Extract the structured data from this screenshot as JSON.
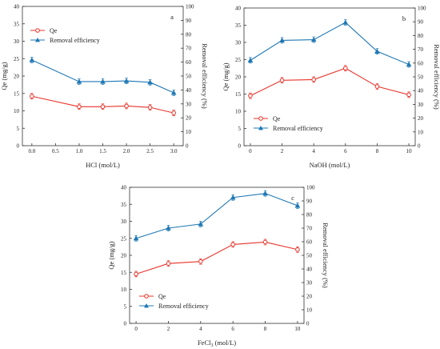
{
  "chart_data": [
    {
      "panel": "a",
      "type": "line",
      "xlabel": "HCl (mol/L)",
      "ylabel": "Qe (mg/g)",
      "y2label": "Removal efficiency (%)",
      "xlim": [
        -0.2,
        3.2
      ],
      "xticks": [
        "0.0",
        "0.5",
        "1.0",
        "1.5",
        "2.0",
        "2.5",
        "3.0"
      ],
      "ylim": [
        0,
        40
      ],
      "yticks": [
        "0",
        "5",
        "10",
        "15",
        "20",
        "25",
        "30",
        "35",
        "40"
      ],
      "y2lim": [
        0,
        100
      ],
      "y2ticks": [
        "0",
        "10",
        "20",
        "30",
        "40",
        "50",
        "60",
        "70",
        "80",
        "90",
        "100"
      ],
      "legend_position": "top-left",
      "grid": false,
      "series": [
        {
          "name": "Qe",
          "axis": "left",
          "marker": "circle",
          "color": "#e8332a",
          "x": [
            0,
            1,
            1.5,
            2,
            2.5,
            3
          ],
          "y": [
            14.2,
            11.2,
            11.2,
            11.4,
            11.0,
            9.4
          ]
        },
        {
          "name": "Removal efficiency",
          "axis": "right",
          "marker": "triangle",
          "color": "#1f78b4",
          "x": [
            0,
            1,
            1.5,
            2,
            2.5,
            3
          ],
          "y": [
            61.5,
            46.0,
            46.0,
            46.5,
            45.5,
            38.0
          ]
        }
      ]
    },
    {
      "panel": "b",
      "type": "line",
      "xlabel": "NaOH (mol/L)",
      "ylabel": "Qe (mg/g)",
      "y2label": "Removal efficiency (%)",
      "xlim": [
        -0.4,
        10.4
      ],
      "xticks": [
        "0",
        "2",
        "4",
        "6",
        "8",
        "10"
      ],
      "ylim": [
        0,
        40
      ],
      "yticks": [
        "0",
        "5",
        "10",
        "15",
        "20",
        "25",
        "30",
        "35",
        "40"
      ],
      "y2lim": [
        0,
        100
      ],
      "y2ticks": [
        "0",
        "10",
        "20",
        "30",
        "40",
        "50",
        "60",
        "70",
        "80",
        "90",
        "100"
      ],
      "legend_position": "bottom-left",
      "grid": false,
      "series": [
        {
          "name": "Qe",
          "axis": "left",
          "marker": "circle",
          "color": "#e8332a",
          "x": [
            0,
            2,
            4,
            6,
            8,
            10
          ],
          "y": [
            14.5,
            19.0,
            19.2,
            22.5,
            17.2,
            14.8
          ]
        },
        {
          "name": "Removal efficiency",
          "axis": "right",
          "marker": "triangle",
          "color": "#1f78b4",
          "x": [
            0,
            2,
            4,
            6,
            8,
            10
          ],
          "y": [
            62.0,
            76.5,
            77.0,
            89.5,
            68.5,
            59.0
          ]
        }
      ]
    },
    {
      "panel": "c",
      "type": "line",
      "xlabel": "FeCl3 (mol/L)",
      "ylabel": "Qe (mg/g)",
      "y2label": "Removal efficiency (%)",
      "xlim": [
        -0.4,
        10.4
      ],
      "xticks": [
        "0",
        "2",
        "4",
        "6",
        "8",
        "10"
      ],
      "ylim": [
        0,
        40
      ],
      "yticks": [
        "0",
        "5",
        "10",
        "15",
        "20",
        "25",
        "30",
        "35",
        "40"
      ],
      "y2lim": [
        0,
        100
      ],
      "y2ticks": [
        "0",
        "10",
        "20",
        "30",
        "40",
        "50",
        "60",
        "70",
        "80",
        "90",
        "100"
      ],
      "legend_position": "bottom-left",
      "grid": false,
      "series": [
        {
          "name": "Qe",
          "axis": "left",
          "marker": "circle",
          "color": "#e8332a",
          "x": [
            0,
            2,
            4,
            6,
            8,
            10
          ],
          "y": [
            14.5,
            17.6,
            18.2,
            23.2,
            23.9,
            21.7
          ]
        },
        {
          "name": "Removal efficiency",
          "axis": "right",
          "marker": "triangle",
          "color": "#1f78b4",
          "x": [
            0,
            2,
            4,
            6,
            8,
            10
          ],
          "y": [
            62.5,
            70.0,
            73.0,
            92.5,
            95.5,
            86.5
          ]
        }
      ]
    }
  ]
}
